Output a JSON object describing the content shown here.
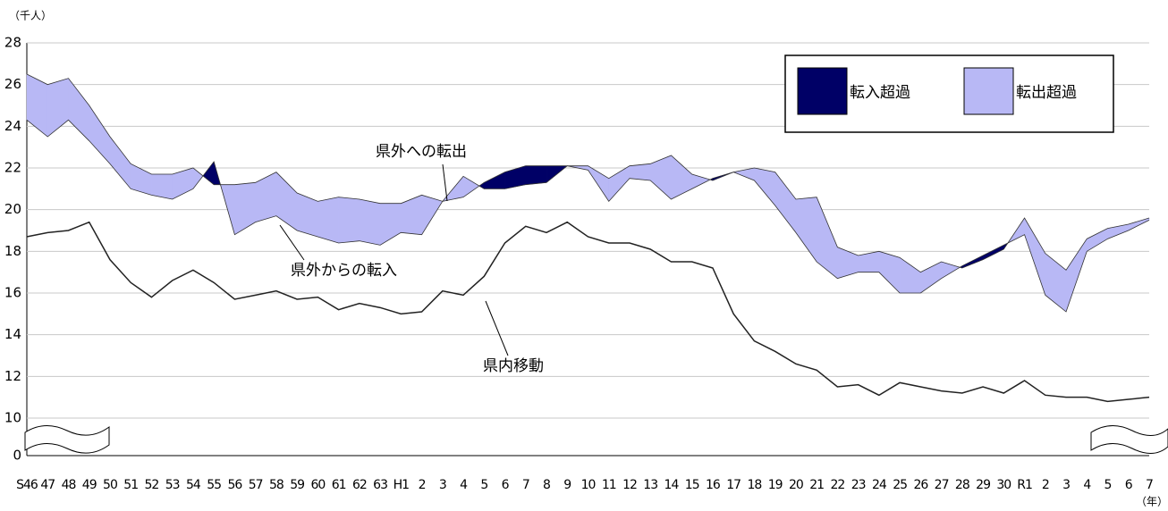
{
  "chart_data": {
    "type": "line",
    "y_label": "（千人）",
    "x_label": "（年）",
    "categories": [
      "S46",
      "47",
      "48",
      "49",
      "50",
      "51",
      "52",
      "53",
      "54",
      "55",
      "56",
      "57",
      "58",
      "59",
      "60",
      "61",
      "62",
      "63",
      "H1",
      "2",
      "3",
      "4",
      "5",
      "6",
      "7",
      "8",
      "9",
      "10",
      "11",
      "12",
      "13",
      "14",
      "15",
      "16",
      "17",
      "18",
      "19",
      "20",
      "21",
      "22",
      "23",
      "24",
      "25",
      "26",
      "27",
      "28",
      "29",
      "30",
      "R1",
      "2",
      "3",
      "4",
      "5",
      "6",
      "7"
    ],
    "series": [
      {
        "name": "県外への転出",
        "color": "#333333",
        "values": [
          26.5,
          26.0,
          26.3,
          25.0,
          23.5,
          22.2,
          21.7,
          21.7,
          22.0,
          21.2,
          21.2,
          21.3,
          21.8,
          20.8,
          20.4,
          20.6,
          20.5,
          20.3,
          20.3,
          20.7,
          20.4,
          21.6,
          21.0,
          21.0,
          21.2,
          21.3,
          22.1,
          22.1,
          21.5,
          22.1,
          22.2,
          22.6,
          21.7,
          21.4,
          21.8,
          22.0,
          21.8,
          20.5,
          20.6,
          18.2,
          17.8,
          18.0,
          17.7,
          17.0,
          17.5,
          17.2,
          17.6,
          18.1,
          19.6,
          17.9,
          17.1,
          18.6,
          19.1,
          19.3,
          19.6
        ]
      },
      {
        "name": "県外からの転入",
        "color": "#333333",
        "values": [
          24.3,
          23.5,
          24.3,
          23.3,
          22.2,
          21.0,
          20.7,
          20.5,
          21.0,
          22.3,
          18.8,
          19.4,
          19.7,
          19.0,
          18.7,
          18.4,
          18.5,
          18.3,
          18.9,
          18.8,
          20.4,
          20.6,
          21.3,
          21.8,
          22.1,
          22.1,
          22.1,
          21.9,
          20.4,
          21.5,
          21.4,
          20.5,
          21.0,
          21.5,
          21.8,
          21.4,
          20.2,
          18.9,
          17.5,
          16.7,
          17.0,
          17.0,
          16.0,
          16.0,
          16.7,
          17.3,
          17.8,
          18.3,
          18.8,
          15.9,
          15.1,
          18.0,
          18.6,
          19.0,
          19.5
        ]
      },
      {
        "name": "県内移動",
        "color": "#222222",
        "values": [
          18.7,
          18.9,
          19.0,
          19.4,
          17.6,
          16.5,
          15.8,
          16.6,
          17.1,
          16.5,
          15.7,
          15.9,
          16.1,
          15.7,
          15.8,
          15.2,
          15.5,
          15.3,
          15.0,
          15.1,
          16.1,
          15.9,
          16.8,
          18.4,
          19.2,
          18.9,
          19.4,
          18.7,
          18.4,
          18.4,
          18.1,
          17.5,
          17.5,
          17.2,
          15.0,
          13.7,
          13.2,
          12.6,
          12.3,
          11.5,
          11.6,
          11.1,
          11.7,
          11.5,
          11.3,
          11.2,
          11.5,
          11.2,
          11.8,
          11.1,
          11.0,
          11.0,
          10.8,
          10.9,
          11.0
        ]
      }
    ],
    "fill_legend": [
      {
        "label": "転入超過",
        "color": "#000066"
      },
      {
        "label": "転出超過",
        "color": "#b8b8f5"
      }
    ],
    "ylim": [
      0,
      28
    ],
    "yticks": [
      0,
      10,
      12,
      14,
      16,
      18,
      20,
      22,
      24,
      26,
      28
    ],
    "grid": true
  }
}
